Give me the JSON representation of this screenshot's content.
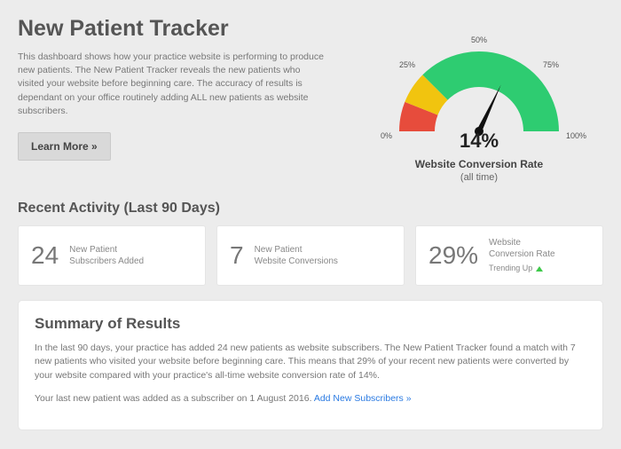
{
  "header": {
    "title": "New Patient Tracker",
    "description": "This dashboard shows how your practice website is performing to produce new patients. The New Patient Tracker reveals the new patients who visited your website before beginning care. The accuracy of results is dependant on your office routinely adding ALL new patients as website subscribers.",
    "learn_more": "Learn More »"
  },
  "gauge": {
    "value_text": "14%",
    "value_pct": 14,
    "label": "Website Conversion Rate",
    "sublabel": "(all time)",
    "ticks": {
      "t0": "0%",
      "t25": "25%",
      "t50": "50%",
      "t75": "75%",
      "t100": "100%"
    },
    "segments": {
      "red": {
        "color": "#e74c3c",
        "start_pct": 0,
        "end_pct": 12
      },
      "yellow": {
        "color": "#f1c40f",
        "start_pct": 12,
        "end_pct": 25
      },
      "green": {
        "color": "#2ecc71",
        "start_pct": 25,
        "end_pct": 100
      }
    },
    "inner_radius": 50,
    "outer_radius": 90
  },
  "recent": {
    "heading": "Recent Activity (Last 90 Days)",
    "cards": [
      {
        "num": "24",
        "line1": "New Patient",
        "line2": "Subscribers Added"
      },
      {
        "num": "7",
        "line1": "New Patient",
        "line2": "Website Conversions"
      },
      {
        "num": "29%",
        "line1": "Website",
        "line2": "Conversion Rate",
        "trend": "Trending Up"
      }
    ]
  },
  "summary": {
    "heading": "Summary of Results",
    "p1": "In the last 90 days, your practice has added 24 new patients as website subscribers. The New Patient Tracker found a match with 7 new patients who visited your website before beginning care. This means that 29% of your recent new patients were converted by your website compared with your practice's all-time website conversion rate of 14%.",
    "p2_prefix": "Your last new patient was added as a subscriber on 1 August 2016. ",
    "link": "Add New Subscribers »"
  }
}
